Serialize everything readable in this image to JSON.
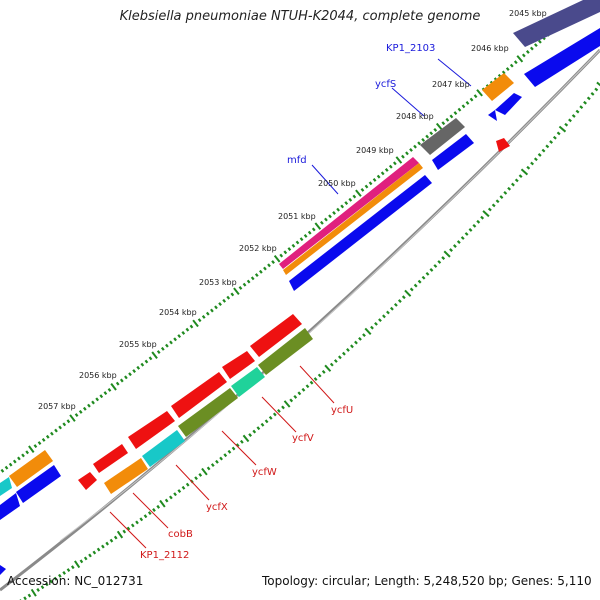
{
  "title": "Klebsiella pneumoniae NTUH-K2044, complete genome",
  "footer": {
    "accession": "Accession: NC_012731",
    "topology": "Topology: circular; Length: 5,248,520 bp; Genes: 5,110"
  },
  "kbp_ticks": [
    "2045 kbp",
    "2046 kbp",
    "2047 kbp",
    "2048 kbp",
    "2049 kbp",
    "2050 kbp",
    "2051 kbp",
    "2052 kbp",
    "2053 kbp",
    "2054 kbp",
    "2055 kbp",
    "2056 kbp",
    "2057 kbp"
  ],
  "gene_labels": [
    {
      "text": "KP1_2103",
      "color": "#1a1adb"
    },
    {
      "text": "ycfS",
      "color": "#1a1adb"
    },
    {
      "text": "mfd",
      "color": "#1a1adb"
    },
    {
      "text": "ycfU",
      "color": "#d01818"
    },
    {
      "text": "ycfV",
      "color": "#d01818"
    },
    {
      "text": "ycfW",
      "color": "#d01818"
    },
    {
      "text": "ycfX",
      "color": "#d01818"
    },
    {
      "text": "cobB",
      "color": "#d01818"
    },
    {
      "text": "KP1_2112",
      "color": "#d01818"
    }
  ],
  "colors": {
    "blue": "#0a0aee",
    "red": "#ee1111",
    "orange": "#f28c0a",
    "navy": "#4a4a8c",
    "gray": "#666666",
    "magenta": "#e0207e",
    "olive": "#6b8e23",
    "teal": "#20d29a",
    "cyan": "#18c8c8",
    "axis": "#8a8a8a",
    "tick": "#1f8a1f"
  }
}
